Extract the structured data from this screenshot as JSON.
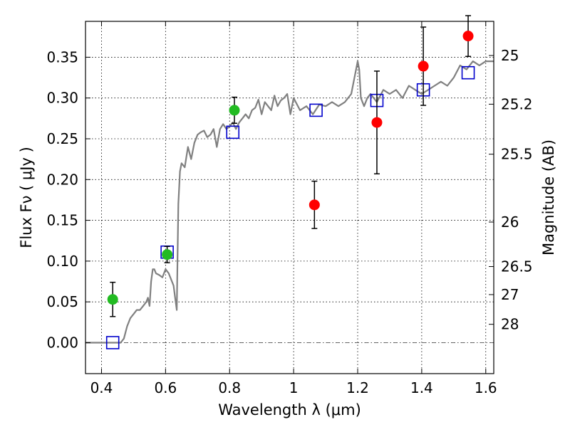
{
  "chart_data": {
    "type": "scatter",
    "xlabel": "Wavelength  λ (μm)",
    "ylabel": "Flux  Fν  ( μJy )",
    "y2label": "Magnitude (AB)",
    "xlim": [
      0.35,
      1.625
    ],
    "ylim": [
      -0.038,
      0.394
    ],
    "grid": true,
    "x_ticks": [
      {
        "value": 0.4,
        "label": "0.4"
      },
      {
        "value": 0.6,
        "label": "0.6"
      },
      {
        "value": 0.8,
        "label": "0.8"
      },
      {
        "value": 1.0,
        "label": "1"
      },
      {
        "value": 1.2,
        "label": "1.2"
      },
      {
        "value": 1.4,
        "label": "1.4"
      },
      {
        "value": 1.6,
        "label": "1.6"
      }
    ],
    "y_ticks": [
      {
        "value": 0.0,
        "label": "0.00"
      },
      {
        "value": 0.05,
        "label": "0.05"
      },
      {
        "value": 0.1,
        "label": "0.10"
      },
      {
        "value": 0.15,
        "label": "0.15"
      },
      {
        "value": 0.2,
        "label": "0.20"
      },
      {
        "value": 0.25,
        "label": "0.25"
      },
      {
        "value": 0.3,
        "label": "0.30"
      },
      {
        "value": 0.35,
        "label": "0.35"
      }
    ],
    "mag_ticks": [
      {
        "flux": 0.3521,
        "label": "25"
      },
      {
        "flux": 0.2924,
        "label": "25.2"
      },
      {
        "flux": 0.2311,
        "label": "25.5"
      },
      {
        "flux": 0.1479,
        "label": "26"
      },
      {
        "flux": 0.0933,
        "label": "26.5"
      },
      {
        "flux": 0.0589,
        "label": "27"
      },
      {
        "flux": 0.0225,
        "label": "28"
      }
    ],
    "series": [
      {
        "kind": "line",
        "color": "#808080",
        "x": [
          0.35,
          0.46,
          0.47,
          0.48,
          0.49,
          0.5,
          0.51,
          0.52,
          0.53,
          0.54,
          0.545,
          0.55,
          0.555,
          0.56,
          0.565,
          0.57,
          0.58,
          0.59,
          0.6,
          0.61,
          0.62,
          0.625,
          0.63,
          0.635,
          0.64,
          0.645,
          0.65,
          0.66,
          0.67,
          0.68,
          0.69,
          0.7,
          0.71,
          0.72,
          0.73,
          0.74,
          0.75,
          0.76,
          0.77,
          0.78,
          0.79,
          0.8,
          0.81,
          0.82,
          0.83,
          0.84,
          0.85,
          0.86,
          0.87,
          0.88,
          0.89,
          0.9,
          0.91,
          0.92,
          0.93,
          0.94,
          0.95,
          0.96,
          0.97,
          0.98,
          0.99,
          1.0,
          1.02,
          1.04,
          1.06,
          1.08,
          1.1,
          1.12,
          1.14,
          1.16,
          1.18,
          1.2,
          1.205,
          1.21,
          1.22,
          1.23,
          1.24,
          1.26,
          1.28,
          1.3,
          1.32,
          1.34,
          1.36,
          1.38,
          1.4,
          1.42,
          1.44,
          1.46,
          1.48,
          1.5,
          1.52,
          1.54,
          1.56,
          1.58,
          1.6,
          1.625
        ],
        "y": [
          0.0,
          0.0,
          0.005,
          0.02,
          0.03,
          0.035,
          0.04,
          0.04,
          0.045,
          0.05,
          0.055,
          0.045,
          0.075,
          0.09,
          0.09,
          0.085,
          0.083,
          0.08,
          0.09,
          0.085,
          0.075,
          0.07,
          0.055,
          0.04,
          0.17,
          0.21,
          0.22,
          0.215,
          0.24,
          0.225,
          0.245,
          0.255,
          0.258,
          0.26,
          0.252,
          0.255,
          0.262,
          0.24,
          0.262,
          0.268,
          0.262,
          0.265,
          0.27,
          0.262,
          0.27,
          0.275,
          0.28,
          0.275,
          0.285,
          0.288,
          0.298,
          0.28,
          0.295,
          0.29,
          0.285,
          0.303,
          0.29,
          0.297,
          0.3,
          0.305,
          0.28,
          0.3,
          0.285,
          0.29,
          0.28,
          0.292,
          0.29,
          0.295,
          0.29,
          0.295,
          0.305,
          0.345,
          0.335,
          0.3,
          0.29,
          0.3,
          0.305,
          0.295,
          0.31,
          0.305,
          0.31,
          0.3,
          0.315,
          0.31,
          0.305,
          0.31,
          0.315,
          0.32,
          0.315,
          0.325,
          0.34,
          0.335,
          0.345,
          0.34,
          0.345,
          0.345
        ]
      },
      {
        "kind": "square",
        "color": "#0000cc",
        "x": [
          0.435,
          0.605,
          0.81,
          1.07,
          1.26,
          1.405,
          1.545
        ],
        "y": [
          0.0,
          0.111,
          0.258,
          0.285,
          0.297,
          0.31,
          0.331
        ]
      },
      {
        "kind": "circle",
        "color": "#22bb22",
        "x": [
          0.435,
          0.605,
          0.815
        ],
        "y": [
          0.053,
          0.108,
          0.285
        ],
        "yerr": [
          0.021,
          0.01,
          0.016
        ]
      },
      {
        "kind": "circle",
        "color": "#ff0000",
        "x": [
          1.065,
          1.26,
          1.405,
          1.545
        ],
        "y": [
          0.169,
          0.27,
          0.339,
          0.376
        ],
        "yerr": [
          0.029,
          0.063,
          0.048,
          0.025
        ]
      }
    ]
  }
}
